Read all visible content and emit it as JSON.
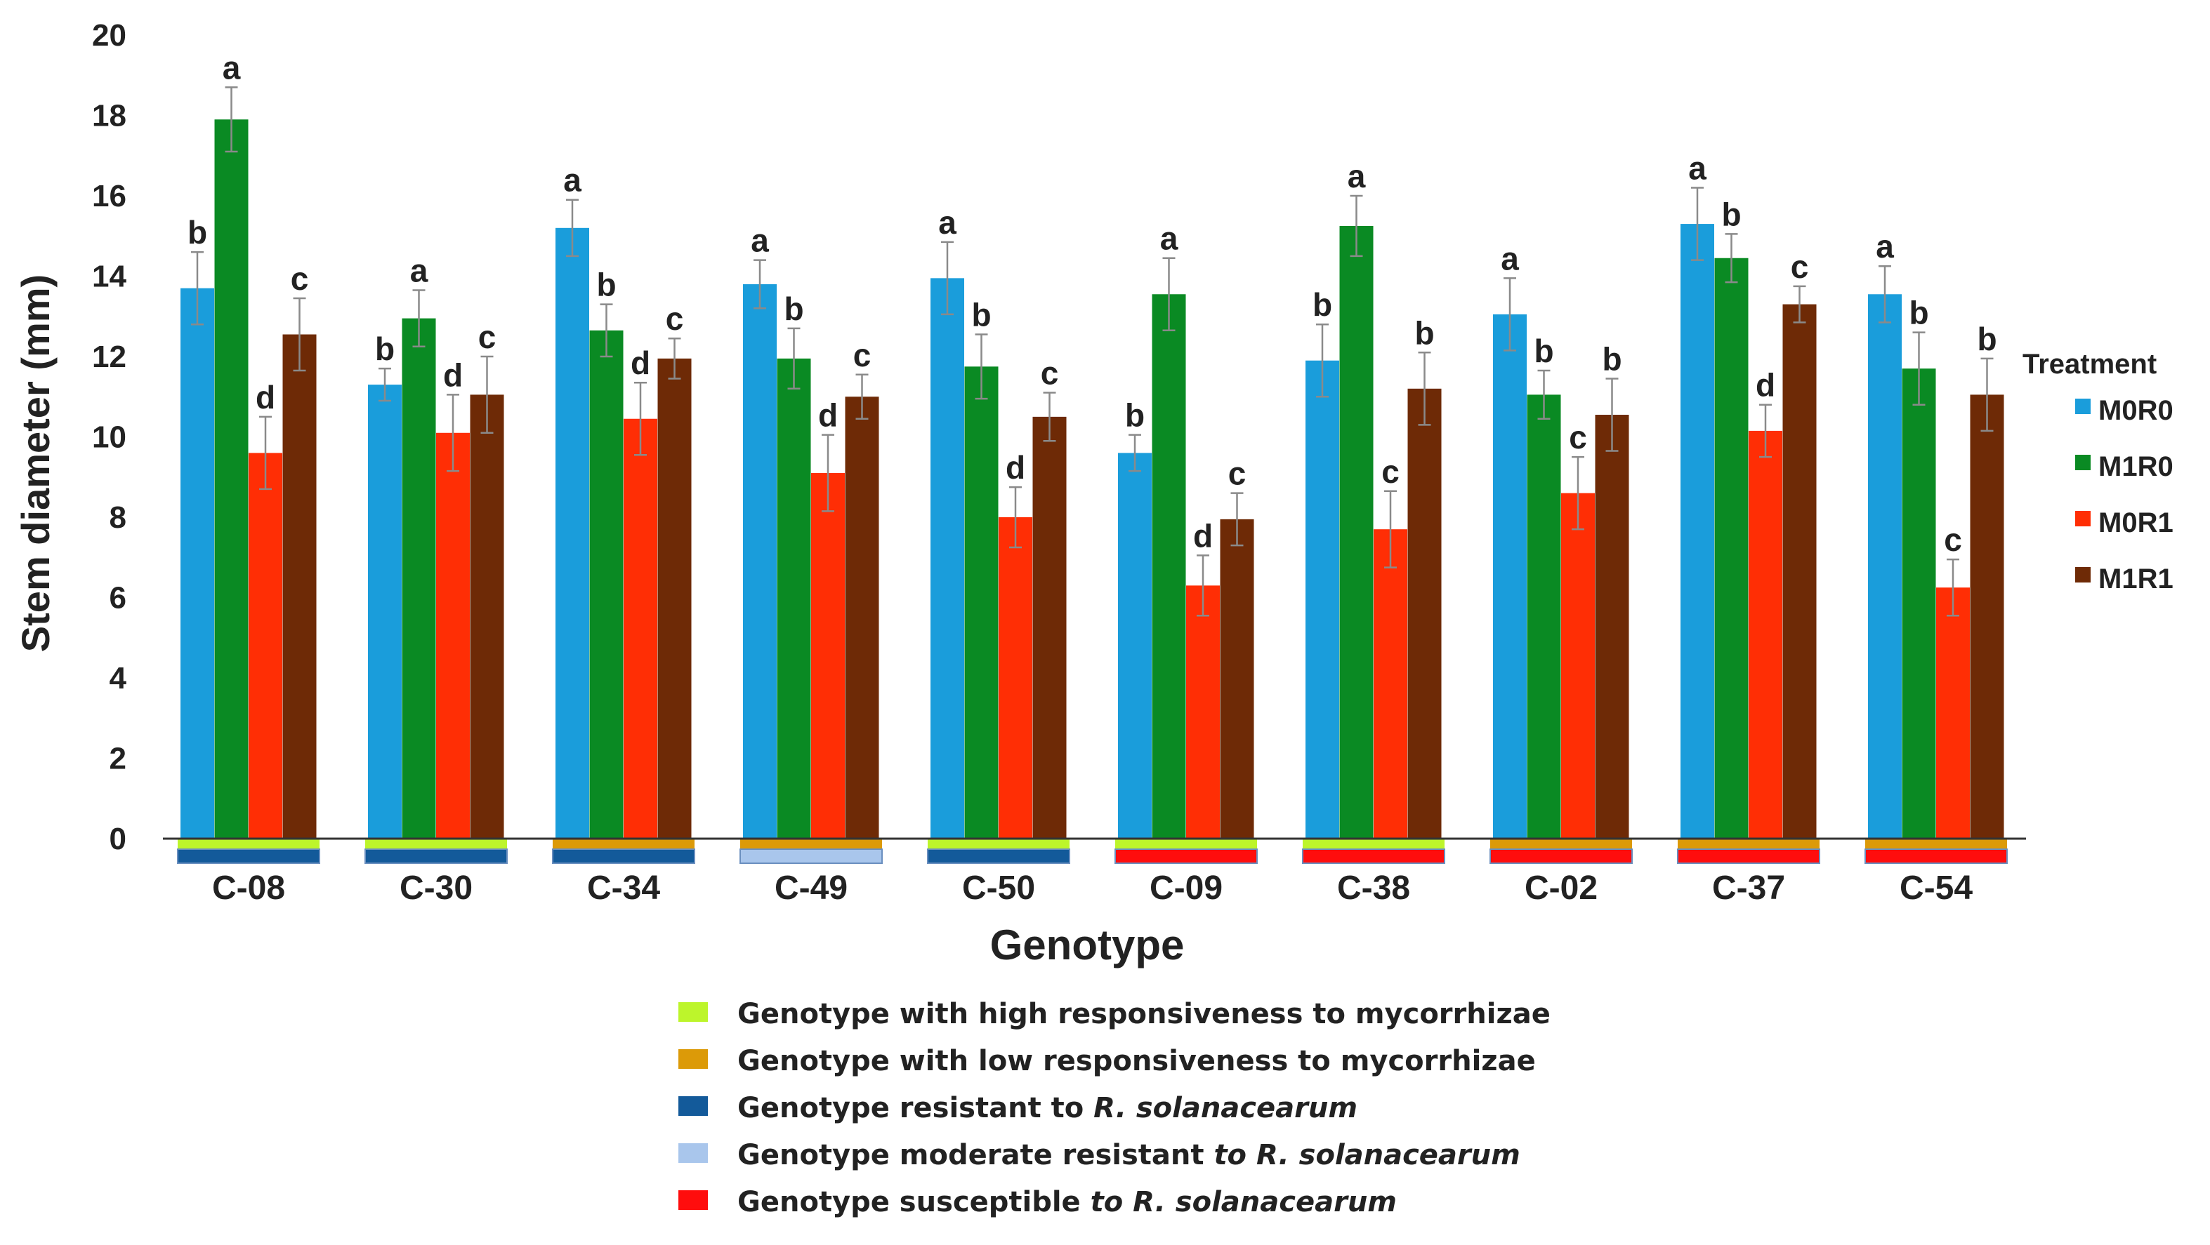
{
  "chart_data": {
    "type": "bar",
    "ylabel": "Stem diameter (mm)",
    "xlabel": "Genotype",
    "ylim": [
      0,
      20
    ],
    "yticks": [
      "0",
      "2",
      "4",
      "6",
      "8",
      "10",
      "12",
      "14",
      "16",
      "18",
      "20"
    ],
    "categories": [
      "C-08",
      "C-30",
      "C-34",
      "C-49",
      "C-50",
      "C-09",
      "C-38",
      "C-02",
      "C-37",
      "C-54"
    ],
    "legend_title": "Treatment",
    "legend_position": "right",
    "series": [
      {
        "name": "M0R0",
        "color": "#1a9ddb",
        "values": [
          13.7,
          11.3,
          15.2,
          13.8,
          13.95,
          9.6,
          11.9,
          13.05,
          15.3,
          13.55
        ],
        "errors": [
          0.9,
          0.4,
          0.7,
          0.6,
          0.9,
          0.45,
          0.9,
          0.9,
          0.9,
          0.7
        ],
        "labels": [
          "b",
          "b",
          "a",
          "a",
          "a",
          "b",
          "b",
          "a",
          "a",
          "a"
        ]
      },
      {
        "name": "M1R0",
        "color": "#0a8a23",
        "values": [
          17.9,
          12.95,
          12.65,
          11.95,
          11.75,
          13.55,
          15.25,
          11.05,
          14.45,
          11.7
        ],
        "errors": [
          0.8,
          0.7,
          0.65,
          0.75,
          0.8,
          0.9,
          0.75,
          0.6,
          0.6,
          0.9
        ],
        "labels": [
          "a",
          "a",
          "b",
          "b",
          "b",
          "a",
          "a",
          "b",
          "b",
          "b"
        ]
      },
      {
        "name": "M0R1",
        "color": "#ff2e05",
        "values": [
          9.6,
          10.1,
          10.45,
          9.1,
          8.0,
          6.3,
          7.7,
          8.6,
          10.15,
          6.25
        ],
        "errors": [
          0.9,
          0.95,
          0.9,
          0.95,
          0.75,
          0.75,
          0.95,
          0.9,
          0.65,
          0.7
        ],
        "labels": [
          "d",
          "d",
          "d",
          "d",
          "d",
          "d",
          "c",
          "c",
          "d",
          "c"
        ]
      },
      {
        "name": "M1R1",
        "color": "#6e2a06",
        "values": [
          12.55,
          11.05,
          11.95,
          11.0,
          10.5,
          7.95,
          11.2,
          10.55,
          13.3,
          11.05
        ],
        "errors": [
          0.9,
          0.95,
          0.5,
          0.55,
          0.6,
          0.65,
          0.9,
          0.9,
          0.45,
          0.9
        ],
        "labels": [
          "c",
          "c",
          "c",
          "c",
          "c",
          "c",
          "b",
          "b",
          "c",
          "b"
        ]
      }
    ],
    "genotype_tags": [
      {
        "responsiveness": "high",
        "resistance": "resistant"
      },
      {
        "responsiveness": "high",
        "resistance": "resistant"
      },
      {
        "responsiveness": "low",
        "resistance": "resistant"
      },
      {
        "responsiveness": "low",
        "resistance": "moderate"
      },
      {
        "responsiveness": "high",
        "resistance": "resistant"
      },
      {
        "responsiveness": "high",
        "resistance": "susceptible"
      },
      {
        "responsiveness": "high",
        "resistance": "susceptible"
      },
      {
        "responsiveness": "low",
        "resistance": "susceptible"
      },
      {
        "responsiveness": "low",
        "resistance": "susceptible"
      },
      {
        "responsiveness": "low",
        "resistance": "susceptible"
      }
    ],
    "category_legend": [
      {
        "key": "high",
        "color": "#bdf52b",
        "text": "Genotype with high responsiveness to mycorrhizae",
        "italic": ""
      },
      {
        "key": "low",
        "color": "#dc9a08",
        "text": "Genotype with low responsiveness to mycorrhizae",
        "italic": ""
      },
      {
        "key": "resistant",
        "color": "#135a9a",
        "text": "Genotype resistant to ",
        "italic": "R. solanacearum"
      },
      {
        "key": "moderate",
        "color": "#a9c6ec",
        "text": "Genotype moderate resistant ",
        "italic": "to R. solanacearum"
      },
      {
        "key": "susceptible",
        "color": "#ff0d0d",
        "text": "Genotype susceptible ",
        "italic": "to R. solanacearum"
      }
    ]
  }
}
